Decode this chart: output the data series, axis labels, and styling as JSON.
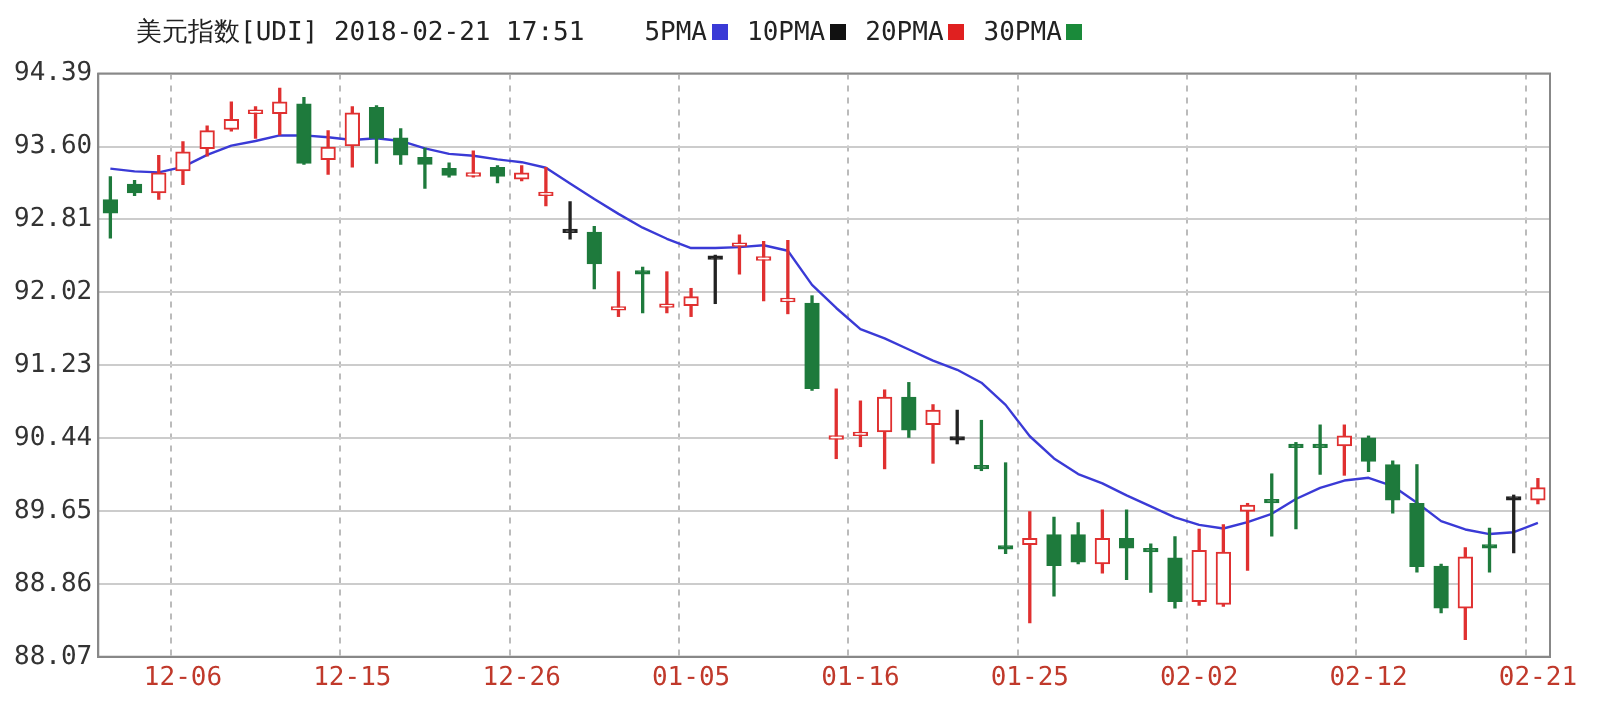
{
  "chart_data": {
    "type": "candlestick",
    "title": "美元指数[UDI] 2018-02-21 17:51",
    "categories": [
      null,
      null,
      null,
      "12-06",
      null,
      null,
      null,
      null,
      null,
      null,
      "12-15",
      null,
      null,
      null,
      null,
      null,
      null,
      "12-26",
      null,
      null,
      null,
      null,
      null,
      null,
      "01-05",
      null,
      null,
      null,
      null,
      null,
      null,
      "01-16",
      null,
      null,
      null,
      null,
      null,
      null,
      "01-25",
      null,
      null,
      null,
      null,
      null,
      null,
      "02-02",
      null,
      null,
      null,
      null,
      null,
      null,
      "02-12",
      null,
      null,
      null,
      null,
      null,
      null,
      "02-21"
    ],
    "ohlc": [
      [
        93.02,
        93.27,
        92.61,
        92.88
      ],
      [
        93.19,
        93.23,
        93.07,
        93.1
      ],
      [
        93.1,
        93.5,
        93.03,
        93.31
      ],
      [
        93.34,
        93.65,
        93.19,
        93.54
      ],
      [
        93.58,
        93.82,
        93.5,
        93.77
      ],
      [
        93.79,
        94.08,
        93.77,
        93.89
      ],
      [
        93.96,
        94.03,
        93.69,
        93.98
      ],
      [
        93.96,
        94.23,
        93.73,
        94.08
      ],
      [
        94.06,
        94.13,
        93.41,
        93.42
      ],
      [
        93.46,
        93.77,
        93.3,
        93.59
      ],
      [
        93.61,
        94.03,
        93.38,
        93.96
      ],
      [
        94.02,
        94.04,
        93.42,
        93.69
      ],
      [
        93.69,
        93.79,
        93.41,
        93.51
      ],
      [
        93.48,
        93.58,
        93.15,
        93.41
      ],
      [
        93.36,
        93.42,
        93.27,
        93.29
      ],
      [
        93.28,
        93.55,
        93.27,
        93.3
      ],
      [
        93.37,
        93.39,
        93.21,
        93.28
      ],
      [
        93.25,
        93.39,
        93.23,
        93.31
      ],
      [
        93.07,
        93.37,
        92.96,
        93.09
      ],
      [
        92.67,
        93.0,
        92.6,
        92.67
      ],
      [
        92.67,
        92.73,
        92.06,
        92.33
      ],
      [
        91.83,
        92.24,
        91.76,
        91.85
      ],
      [
        92.24,
        92.29,
        91.8,
        92.22
      ],
      [
        91.86,
        92.24,
        91.8,
        91.88
      ],
      [
        91.88,
        92.06,
        91.76,
        91.97
      ],
      [
        92.38,
        92.42,
        91.9,
        92.38
      ],
      [
        92.52,
        92.64,
        92.22,
        92.54
      ],
      [
        92.37,
        92.57,
        91.93,
        92.39
      ],
      [
        91.92,
        92.58,
        91.79,
        91.94
      ],
      [
        91.9,
        91.98,
        90.96,
        90.98
      ],
      [
        90.43,
        90.97,
        90.22,
        90.45
      ],
      [
        90.47,
        90.84,
        90.35,
        90.49
      ],
      [
        90.51,
        90.96,
        90.11,
        90.88
      ],
      [
        90.88,
        91.04,
        90.45,
        90.53
      ],
      [
        90.59,
        90.8,
        90.17,
        90.74
      ],
      [
        90.42,
        90.74,
        90.38,
        90.42
      ],
      [
        90.12,
        90.63,
        90.09,
        90.11
      ],
      [
        89.25,
        90.17,
        89.19,
        89.24
      ],
      [
        89.29,
        89.64,
        88.44,
        89.35
      ],
      [
        89.39,
        89.58,
        88.73,
        89.06
      ],
      [
        89.39,
        89.52,
        89.08,
        89.1
      ],
      [
        89.08,
        89.66,
        88.98,
        89.35
      ],
      [
        89.35,
        89.66,
        88.91,
        89.25
      ],
      [
        89.22,
        89.29,
        88.77,
        89.21
      ],
      [
        89.14,
        89.37,
        88.6,
        88.67
      ],
      [
        88.67,
        89.45,
        88.63,
        89.22
      ],
      [
        88.64,
        89.5,
        88.62,
        89.2
      ],
      [
        89.65,
        89.73,
        89.01,
        89.71
      ],
      [
        89.75,
        90.05,
        89.38,
        89.74
      ],
      [
        90.35,
        90.39,
        89.46,
        90.34
      ],
      [
        90.35,
        90.58,
        90.05,
        90.34
      ],
      [
        90.36,
        90.58,
        90.04,
        90.46
      ],
      [
        90.44,
        90.46,
        90.08,
        90.19
      ],
      [
        90.15,
        90.19,
        89.63,
        89.77
      ],
      [
        89.73,
        90.15,
        88.99,
        89.05
      ],
      [
        89.05,
        89.07,
        88.55,
        88.6
      ],
      [
        88.6,
        89.25,
        88.26,
        89.15
      ],
      [
        89.26,
        89.46,
        88.99,
        89.25
      ],
      [
        89.77,
        89.82,
        89.2,
        89.77
      ],
      [
        89.77,
        90.0,
        89.73,
        89.9
      ]
    ],
    "series": [
      {
        "name": "5PMA",
        "type": "line",
        "color": "#3a3ad6",
        "values": [
          93.36,
          93.33,
          93.32,
          93.38,
          93.51,
          93.61,
          93.66,
          93.72,
          93.72,
          93.7,
          93.67,
          93.69,
          93.66,
          93.58,
          93.52,
          93.5,
          93.46,
          93.43,
          93.37,
          93.2,
          93.03,
          92.87,
          92.72,
          92.6,
          92.5,
          92.5,
          92.51,
          92.53,
          92.47,
          92.1,
          91.85,
          91.62,
          91.52,
          91.4,
          91.28,
          91.18,
          91.04,
          90.8,
          90.46,
          90.22,
          90.05,
          89.95,
          89.82,
          89.7,
          89.58,
          89.5,
          89.46,
          89.53,
          89.62,
          89.78,
          89.9,
          89.98,
          90.01,
          89.92,
          89.74,
          89.54,
          89.45,
          89.4,
          89.42,
          89.52
        ]
      },
      {
        "name": "10PMA",
        "type": "line",
        "color": "#111111",
        "values": [
          null,
          null,
          null,
          null,
          null,
          null,
          null,
          null,
          null,
          null,
          null,
          null,
          null,
          null,
          null,
          null,
          null,
          null,
          null,
          null,
          null,
          null,
          null,
          null,
          null,
          null,
          null,
          null,
          null,
          null,
          null,
          null,
          null,
          null,
          null,
          null,
          null,
          null,
          null,
          null,
          null,
          null,
          null,
          null,
          null,
          null,
          null,
          null,
          null,
          null,
          null,
          null,
          null,
          null,
          null,
          null,
          null,
          null,
          null,
          null
        ]
      },
      {
        "name": "20PMA",
        "type": "line",
        "color": "#e02020",
        "values": [
          null,
          null,
          null,
          null,
          null,
          null,
          null,
          null,
          null,
          null,
          null,
          null,
          null,
          null,
          null,
          null,
          null,
          null,
          null,
          null,
          null,
          null,
          null,
          null,
          null,
          null,
          null,
          null,
          null,
          null,
          null,
          null,
          null,
          null,
          null,
          null,
          null,
          null,
          null,
          null,
          null,
          null,
          null,
          null,
          null,
          null,
          null,
          null,
          null,
          null,
          null,
          null,
          null,
          null,
          null,
          null,
          null,
          null,
          null,
          null
        ]
      },
      {
        "name": "30PMA",
        "type": "line",
        "color": "#1a8a3a",
        "values": [
          null,
          null,
          null,
          null,
          null,
          null,
          null,
          null,
          null,
          null,
          null,
          null,
          null,
          null,
          null,
          null,
          null,
          null,
          null,
          null,
          null,
          null,
          null,
          null,
          null,
          null,
          null,
          null,
          null,
          null,
          null,
          null,
          null,
          null,
          null,
          null,
          null,
          null,
          null,
          null,
          null,
          null,
          null,
          null,
          null,
          null,
          null,
          null,
          null,
          null,
          null,
          null,
          null,
          null,
          null,
          null,
          null,
          null,
          null,
          null
        ]
      }
    ],
    "ylim": [
      88.07,
      94.39
    ],
    "yticks": [
      88.07,
      88.86,
      89.65,
      90.44,
      91.23,
      92.02,
      92.81,
      {
        "value": 93.6,
        "label": "93.60"
      },
      94.39
    ],
    "grid": true,
    "legend": "top right"
  }
}
